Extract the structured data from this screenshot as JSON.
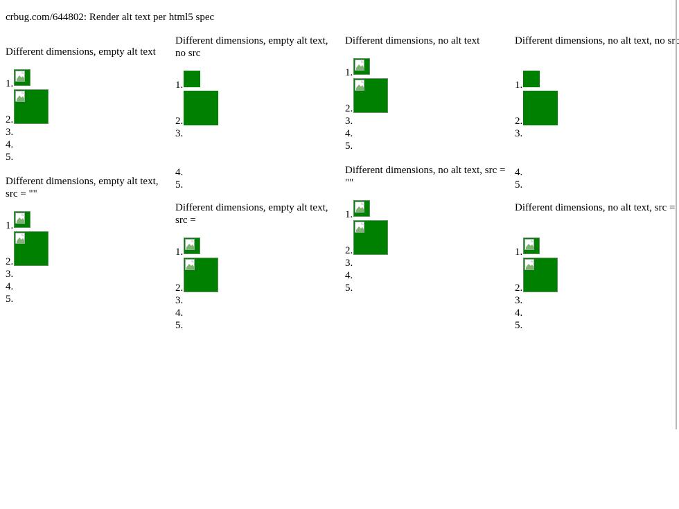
{
  "page": {
    "header": "crbug.com/644802: Render alt text per html5 spec"
  },
  "sections": [
    {
      "title": "Different dimensions, empty alt text",
      "items": [
        "1.",
        "2.",
        "3.",
        "4.",
        "5."
      ]
    },
    {
      "title": "Different dimensions, empty alt text, no src",
      "items": [
        "1.",
        "2.",
        "3.",
        "4.",
        "5."
      ]
    },
    {
      "title": "Different dimensions, no alt text",
      "items": [
        "1.",
        "2.",
        "3.",
        "4.",
        "5."
      ]
    },
    {
      "title": "Different dimensions, no alt text, no src",
      "items": [
        "1.",
        "2.",
        "3.",
        "4.",
        "5."
      ]
    },
    {
      "title": "Different dimensions, empty alt text, src = \"\"",
      "items": [
        "1.",
        "2.",
        "3.",
        "4.",
        "5."
      ]
    },
    {
      "title": "Different dimensions, empty alt text, src =",
      "items": [
        "1.",
        "2.",
        "3.",
        "4.",
        "5."
      ]
    },
    {
      "title": "Different dimensions, no alt text, src = \"\"",
      "items": [
        "1.",
        "2.",
        "3.",
        "4.",
        "5."
      ]
    },
    {
      "title": "Different dimensions, no alt text, src =",
      "items": [
        "1.",
        "2.",
        "3.",
        "4.",
        "5."
      ]
    }
  ],
  "theme": {
    "image_fill": "#008000",
    "image_border": "#5f8f5f"
  },
  "icons": {
    "broken_image": "broken-image-icon"
  }
}
